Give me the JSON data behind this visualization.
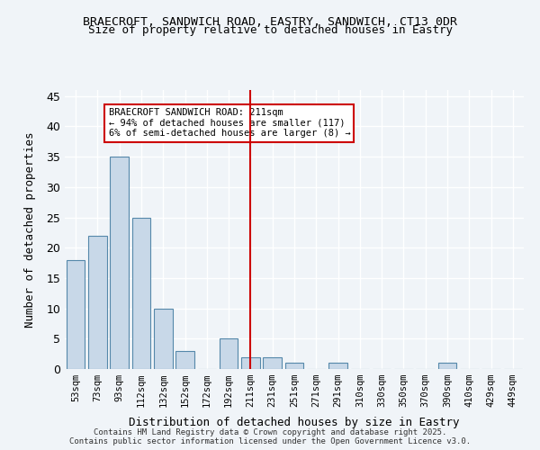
{
  "title_line1": "BRAECROFT, SANDWICH ROAD, EASTRY, SANDWICH, CT13 0DR",
  "title_line2": "Size of property relative to detached houses in Eastry",
  "xlabel": "Distribution of detached houses by size in Eastry",
  "ylabel": "Number of detached properties",
  "categories": [
    "53sqm",
    "73sqm",
    "93sqm",
    "112sqm",
    "132sqm",
    "152sqm",
    "172sqm",
    "192sqm",
    "211sqm",
    "231sqm",
    "251sqm",
    "271sqm",
    "291sqm",
    "310sqm",
    "330sqm",
    "350sqm",
    "370sqm",
    "390sqm",
    "410sqm",
    "429sqm",
    "449sqm"
  ],
  "values": [
    18,
    22,
    35,
    25,
    10,
    3,
    0,
    5,
    2,
    2,
    1,
    0,
    1,
    0,
    0,
    0,
    0,
    1,
    0,
    0,
    0
  ],
  "bar_color": "#c8d8e8",
  "bar_edgecolor": "#5588aa",
  "vline_x": 8,
  "vline_color": "#cc0000",
  "annotation_text": "BRAECROFT SANDWICH ROAD: 211sqm\n← 94% of detached houses are smaller (117)\n6% of semi-detached houses are larger (8) →",
  "annotation_box_color": "#ffffff",
  "annotation_box_edgecolor": "#cc0000",
  "ylim": [
    0,
    46
  ],
  "yticks": [
    0,
    5,
    10,
    15,
    20,
    25,
    30,
    35,
    40,
    45
  ],
  "footer_text": "Contains HM Land Registry data © Crown copyright and database right 2025.\nContains public sector information licensed under the Open Government Licence v3.0.",
  "background_color": "#f0f4f8",
  "grid_color": "#ffffff"
}
